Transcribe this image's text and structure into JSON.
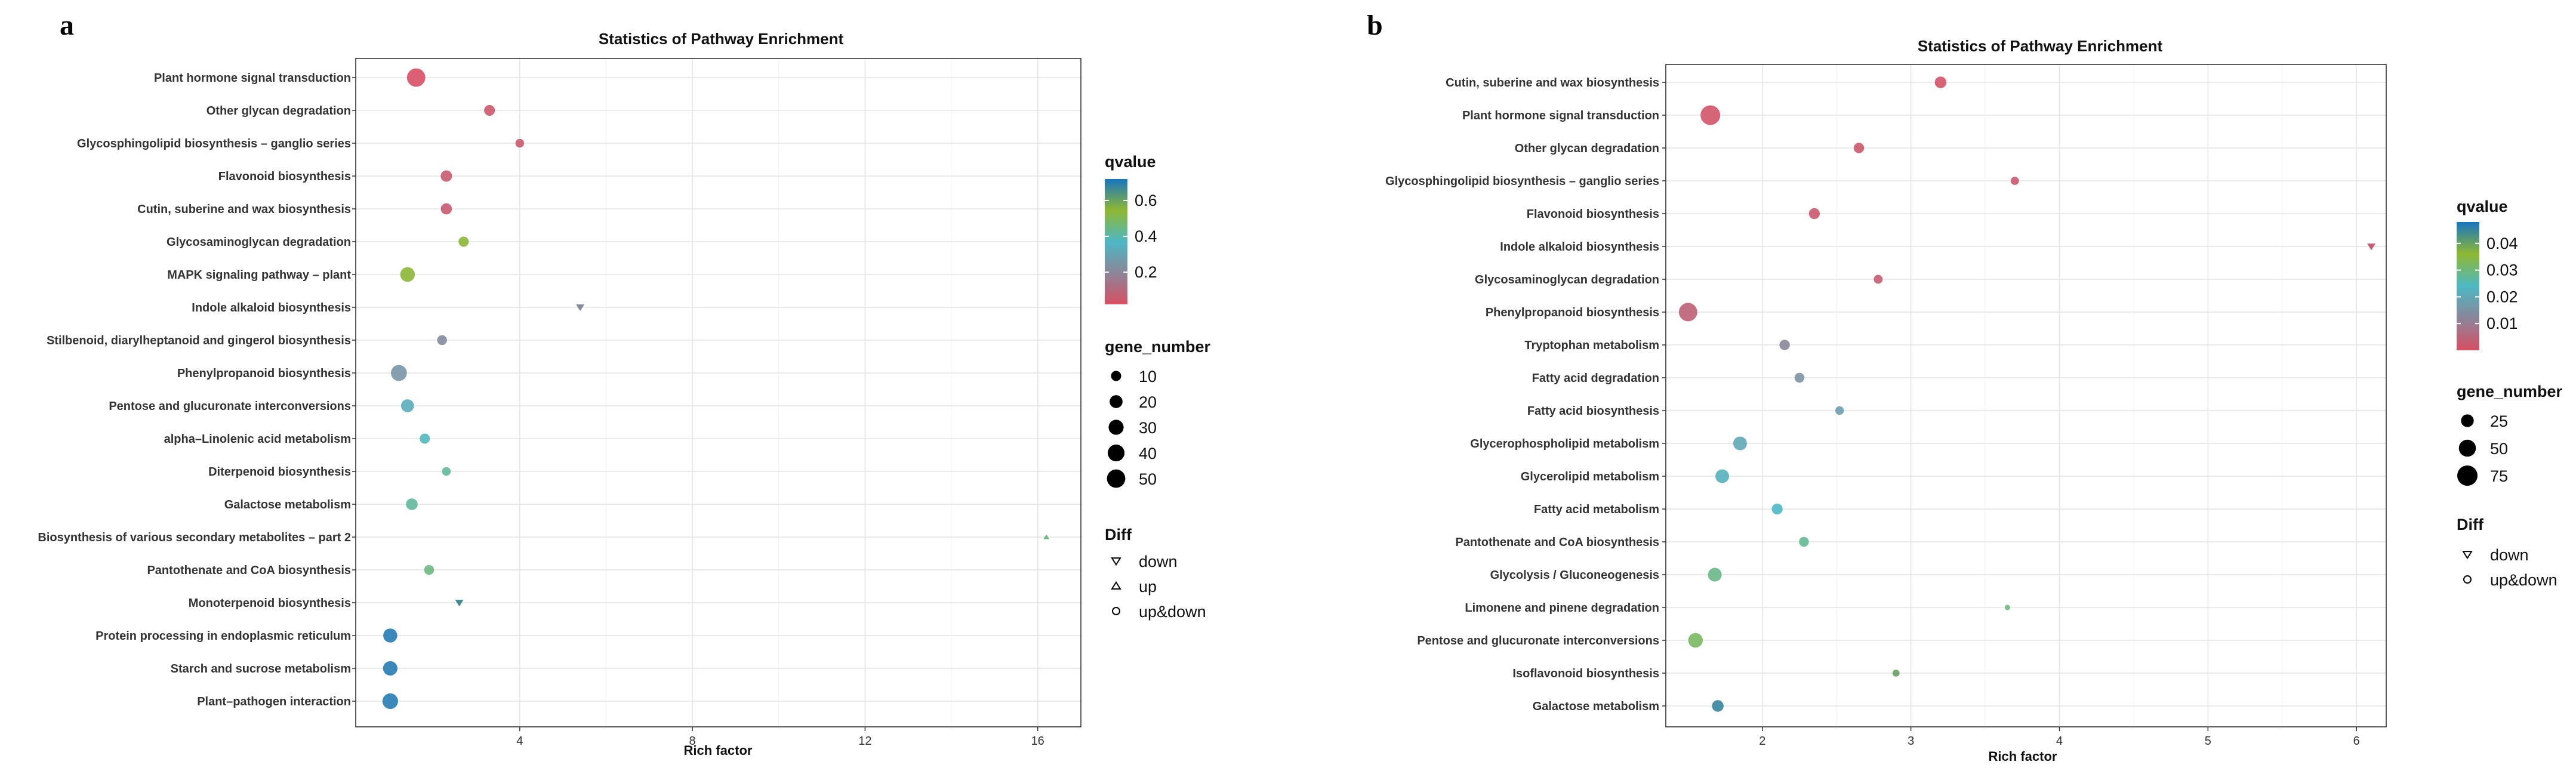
{
  "chart_data": [
    {
      "panel": "a",
      "type": "scatter",
      "title": "Statistics of Pathway Enrichment",
      "xlabel": "Rich factor",
      "ylabel": "",
      "xlim": [
        0.2,
        17.0
      ],
      "xticks": [
        4,
        8,
        12,
        16
      ],
      "categories": [
        "Plant hormone signal transduction",
        "Other glycan degradation",
        "Glycosphingolipid biosynthesis – ganglio series",
        "Flavonoid biosynthesis",
        "Cutin, suberine and wax biosynthesis",
        "Glycosaminoglycan degradation",
        "MAPK signaling pathway – plant",
        "Indole alkaloid biosynthesis",
        "Stilbenoid, diarylheptanoid and gingerol biosynthesis",
        "Phenylpropanoid biosynthesis",
        "Pentose and glucuronate interconversions",
        "alpha–Linolenic acid metabolism",
        "Diterpenoid biosynthesis",
        "Galactose metabolism",
        "Biosynthesis of various secondary metabolites – part 2",
        "Pantothenate and CoA biosynthesis",
        "Monoterpenoid biosynthesis",
        "Protein processing in endoplasmic reticulum",
        "Starch and sucrose metabolism",
        "Plant–pathogen interaction"
      ],
      "points": [
        {
          "pathway": "Plant hormone signal transduction",
          "rich_factor": 1.6,
          "qvalue": 0.02,
          "gene_number": 50,
          "diff": "up&down"
        },
        {
          "pathway": "Other glycan degradation",
          "rich_factor": 3.3,
          "qvalue": 0.05,
          "gene_number": 12,
          "diff": "up&down"
        },
        {
          "pathway": "Glycosphingolipid biosynthesis – ganglio series",
          "rich_factor": 4.0,
          "qvalue": 0.05,
          "gene_number": 6,
          "diff": "up&down"
        },
        {
          "pathway": "Flavonoid biosynthesis",
          "rich_factor": 2.3,
          "qvalue": 0.06,
          "gene_number": 14,
          "diff": "up&down"
        },
        {
          "pathway": "Cutin, suberine and wax biosynthesis",
          "rich_factor": 2.3,
          "qvalue": 0.06,
          "gene_number": 13,
          "diff": "up&down"
        },
        {
          "pathway": "Glycosaminoglycan degradation",
          "rich_factor": 2.7,
          "qvalue": 0.55,
          "gene_number": 10,
          "diff": "up&down"
        },
        {
          "pathway": "MAPK signaling pathway – plant",
          "rich_factor": 1.4,
          "qvalue": 0.55,
          "gene_number": 28,
          "diff": "up&down"
        },
        {
          "pathway": "Indole alkaloid biosynthesis",
          "rich_factor": 5.4,
          "qvalue": 0.22,
          "gene_number": 3,
          "diff": "down"
        },
        {
          "pathway": "Stilbenoid, diarylheptanoid and gingerol biosynthesis",
          "rich_factor": 2.2,
          "qvalue": 0.22,
          "gene_number": 9,
          "diff": "up&down"
        },
        {
          "pathway": "Phenylpropanoid biosynthesis",
          "rich_factor": 1.2,
          "qvalue": 0.25,
          "gene_number": 35,
          "diff": "up&down"
        },
        {
          "pathway": "Pentose and glucuronate interconversions",
          "rich_factor": 1.4,
          "qvalue": 0.33,
          "gene_number": 20,
          "diff": "up&down"
        },
        {
          "pathway": "alpha–Linolenic acid metabolism",
          "rich_factor": 1.8,
          "qvalue": 0.38,
          "gene_number": 10,
          "diff": "up&down"
        },
        {
          "pathway": "Diterpenoid biosynthesis",
          "rich_factor": 2.3,
          "qvalue": 0.42,
          "gene_number": 6,
          "diff": "up&down"
        },
        {
          "pathway": "Galactose metabolism",
          "rich_factor": 1.5,
          "qvalue": 0.42,
          "gene_number": 15,
          "diff": "up&down"
        },
        {
          "pathway": "Biosynthesis of various secondary metabolites – part 2",
          "rich_factor": 16.2,
          "qvalue": 0.45,
          "gene_number": 1,
          "diff": "up"
        },
        {
          "pathway": "Pantothenate and CoA biosynthesis",
          "rich_factor": 1.9,
          "qvalue": 0.45,
          "gene_number": 9,
          "diff": "up&down"
        },
        {
          "pathway": "Monoterpenoid biosynthesis",
          "rich_factor": 2.6,
          "qvalue": 0.66,
          "gene_number": 3,
          "diff": "down"
        },
        {
          "pathway": "Protein processing in endoplasmic reticulum",
          "rich_factor": 1.0,
          "qvalue": 0.7,
          "gene_number": 25,
          "diff": "up&down"
        },
        {
          "pathway": "Starch and sucrose metabolism",
          "rich_factor": 1.0,
          "qvalue": 0.7,
          "gene_number": 27,
          "diff": "up&down"
        },
        {
          "pathway": "Plant–pathogen interaction",
          "rich_factor": 1.0,
          "qvalue": 0.7,
          "gene_number": 33,
          "diff": "up&down"
        }
      ],
      "legend": {
        "qvalue_title": "qvalue",
        "qvalue_ticks": [
          0.2,
          0.4,
          0.6
        ],
        "qvalue_ticklabels": [
          "0.2",
          "0.4",
          "0.6"
        ],
        "qvalue_range": [
          0.02,
          0.72
        ],
        "gene_number_title": "gene_number",
        "gene_number_values": [
          10,
          20,
          30,
          40,
          50
        ],
        "diff_title": "Diff",
        "diff_items": [
          "down",
          "up",
          "up&down"
        ]
      }
    },
    {
      "panel": "b",
      "type": "scatter",
      "title": "Statistics of Pathway Enrichment",
      "xlabel": "Rich factor",
      "ylabel": "",
      "xlim": [
        1.35,
        6.2
      ],
      "xticks": [
        2,
        3,
        4,
        5,
        6
      ],
      "categories": [
        "Cutin, suberine and wax biosynthesis",
        "Plant hormone signal transduction",
        "Other glycan degradation",
        "Glycosphingolipid biosynthesis – ganglio series",
        "Flavonoid biosynthesis",
        "Indole alkaloid biosynthesis",
        "Glycosaminoglycan degradation",
        "Phenylpropanoid biosynthesis",
        "Tryptophan metabolism",
        "Fatty acid degradation",
        "Fatty acid biosynthesis",
        "Glycerophospholipid metabolism",
        "Glycerolipid metabolism",
        "Fatty acid metabolism",
        "Pantothenate and CoA biosynthesis",
        "Glycolysis / Gluconeogenesis",
        "Limonene and pinene degradation",
        "Pentose and glucuronate interconversions",
        "Isoflavonoid biosynthesis",
        "Galactose metabolism"
      ],
      "points": [
        {
          "pathway": "Cutin, suberine and wax biosynthesis",
          "rich_factor": 3.2,
          "qvalue": 0.001,
          "gene_number": 20,
          "diff": "up&down"
        },
        {
          "pathway": "Plant hormone signal transduction",
          "rich_factor": 1.65,
          "qvalue": 0.001,
          "gene_number": 70,
          "diff": "up&down"
        },
        {
          "pathway": "Other glycan degradation",
          "rich_factor": 2.65,
          "qvalue": 0.002,
          "gene_number": 15,
          "diff": "up&down"
        },
        {
          "pathway": "Glycosphingolipid biosynthesis – ganglio series",
          "rich_factor": 3.7,
          "qvalue": 0.002,
          "gene_number": 8,
          "diff": "up&down"
        },
        {
          "pathway": "Flavonoid biosynthesis",
          "rich_factor": 2.35,
          "qvalue": 0.002,
          "gene_number": 17,
          "diff": "up&down"
        },
        {
          "pathway": "Indole alkaloid biosynthesis",
          "rich_factor": 6.1,
          "qvalue": 0.003,
          "gene_number": 2,
          "diff": "down"
        },
        {
          "pathway": "Glycosaminoglycan degradation",
          "rich_factor": 2.78,
          "qvalue": 0.003,
          "gene_number": 10,
          "diff": "up&down"
        },
        {
          "pathway": "Phenylpropanoid biosynthesis",
          "rich_factor": 1.5,
          "qvalue": 0.004,
          "gene_number": 60,
          "diff": "up&down"
        },
        {
          "pathway": "Tryptophan metabolism",
          "rich_factor": 2.15,
          "qvalue": 0.012,
          "gene_number": 15,
          "diff": "up&down"
        },
        {
          "pathway": "Fatty acid degradation",
          "rich_factor": 2.25,
          "qvalue": 0.015,
          "gene_number": 13,
          "diff": "up&down"
        },
        {
          "pathway": "Fatty acid biosynthesis",
          "rich_factor": 2.52,
          "qvalue": 0.018,
          "gene_number": 9,
          "diff": "up&down"
        },
        {
          "pathway": "Glycerophospholipid metabolism",
          "rich_factor": 1.85,
          "qvalue": 0.02,
          "gene_number": 30,
          "diff": "up&down"
        },
        {
          "pathway": "Glycerolipid metabolism",
          "rich_factor": 1.73,
          "qvalue": 0.022,
          "gene_number": 30,
          "diff": "up&down"
        },
        {
          "pathway": "Fatty acid metabolism",
          "rich_factor": 2.1,
          "qvalue": 0.024,
          "gene_number": 17,
          "diff": "up&down"
        },
        {
          "pathway": "Pantothenate and CoA biosynthesis",
          "rich_factor": 2.28,
          "qvalue": 0.028,
          "gene_number": 13,
          "diff": "up&down"
        },
        {
          "pathway": "Glycolysis / Gluconeogenesis",
          "rich_factor": 1.68,
          "qvalue": 0.029,
          "gene_number": 30,
          "diff": "up&down"
        },
        {
          "pathway": "Limonene and pinene degradation",
          "rich_factor": 3.65,
          "qvalue": 0.03,
          "gene_number": 2,
          "diff": "up&down"
        },
        {
          "pathway": "Pentose and glucuronate interconversions",
          "rich_factor": 1.55,
          "qvalue": 0.032,
          "gene_number": 35,
          "diff": "up&down"
        },
        {
          "pathway": "Isoflavonoid biosynthesis",
          "rich_factor": 2.9,
          "qvalue": 0.04,
          "gene_number": 5,
          "diff": "up&down"
        },
        {
          "pathway": "Galactose metabolism",
          "rich_factor": 1.7,
          "qvalue": 0.045,
          "gene_number": 20,
          "diff": "up&down"
        }
      ],
      "legend": {
        "qvalue_title": "qvalue",
        "qvalue_ticks": [
          0.01,
          0.02,
          0.03,
          0.04
        ],
        "qvalue_ticklabels": [
          "0.01",
          "0.02",
          "0.03",
          "0.04"
        ],
        "qvalue_range": [
          0.0,
          0.048
        ],
        "gene_number_title": "gene_number",
        "gene_number_values": [
          25,
          50,
          75
        ],
        "diff_title": "Diff",
        "diff_items": [
          "down",
          "up&down"
        ]
      }
    }
  ],
  "panel_labels": [
    "a",
    "b"
  ],
  "colors": {
    "low": "#c9485b",
    "midlow": "#8b8599",
    "mid": "#4db8c4",
    "midhigh": "#8fb832",
    "high": "#1874c2",
    "frame": "#333333",
    "grid": "#e3e3e3"
  }
}
